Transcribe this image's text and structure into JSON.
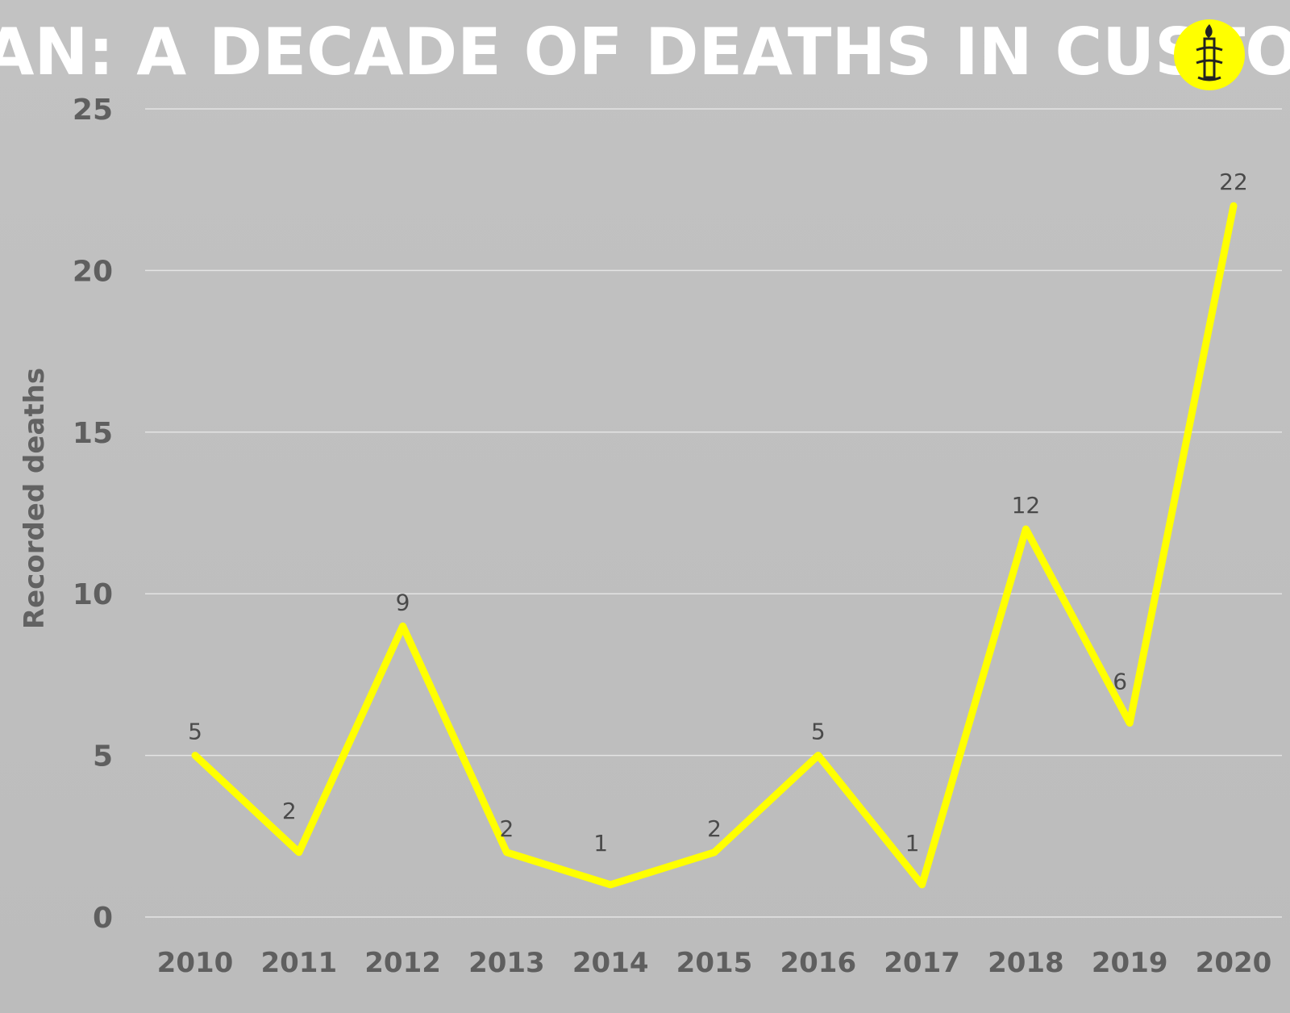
{
  "chart_data": {
    "type": "line",
    "title": "IRAN: A DECADE OF DEATHS IN CUSTODY",
    "ylabel": "Recorded deaths",
    "xlabel": "",
    "categories": [
      "2010",
      "2011",
      "2012",
      "2013",
      "2014",
      "2015",
      "2016",
      "2017",
      "2018",
      "2019",
      "2020"
    ],
    "values": [
      5,
      2,
      9,
      2,
      1,
      2,
      5,
      1,
      12,
      6,
      22
    ],
    "ylim": [
      0,
      25
    ],
    "yticks": [
      0,
      5,
      10,
      15,
      20,
      25
    ],
    "grid": true,
    "legend": "none",
    "line_color": "#ffff00",
    "logo_color": "#ffff00",
    "logo_icon": "candle-in-barbed-wire-icon"
  }
}
